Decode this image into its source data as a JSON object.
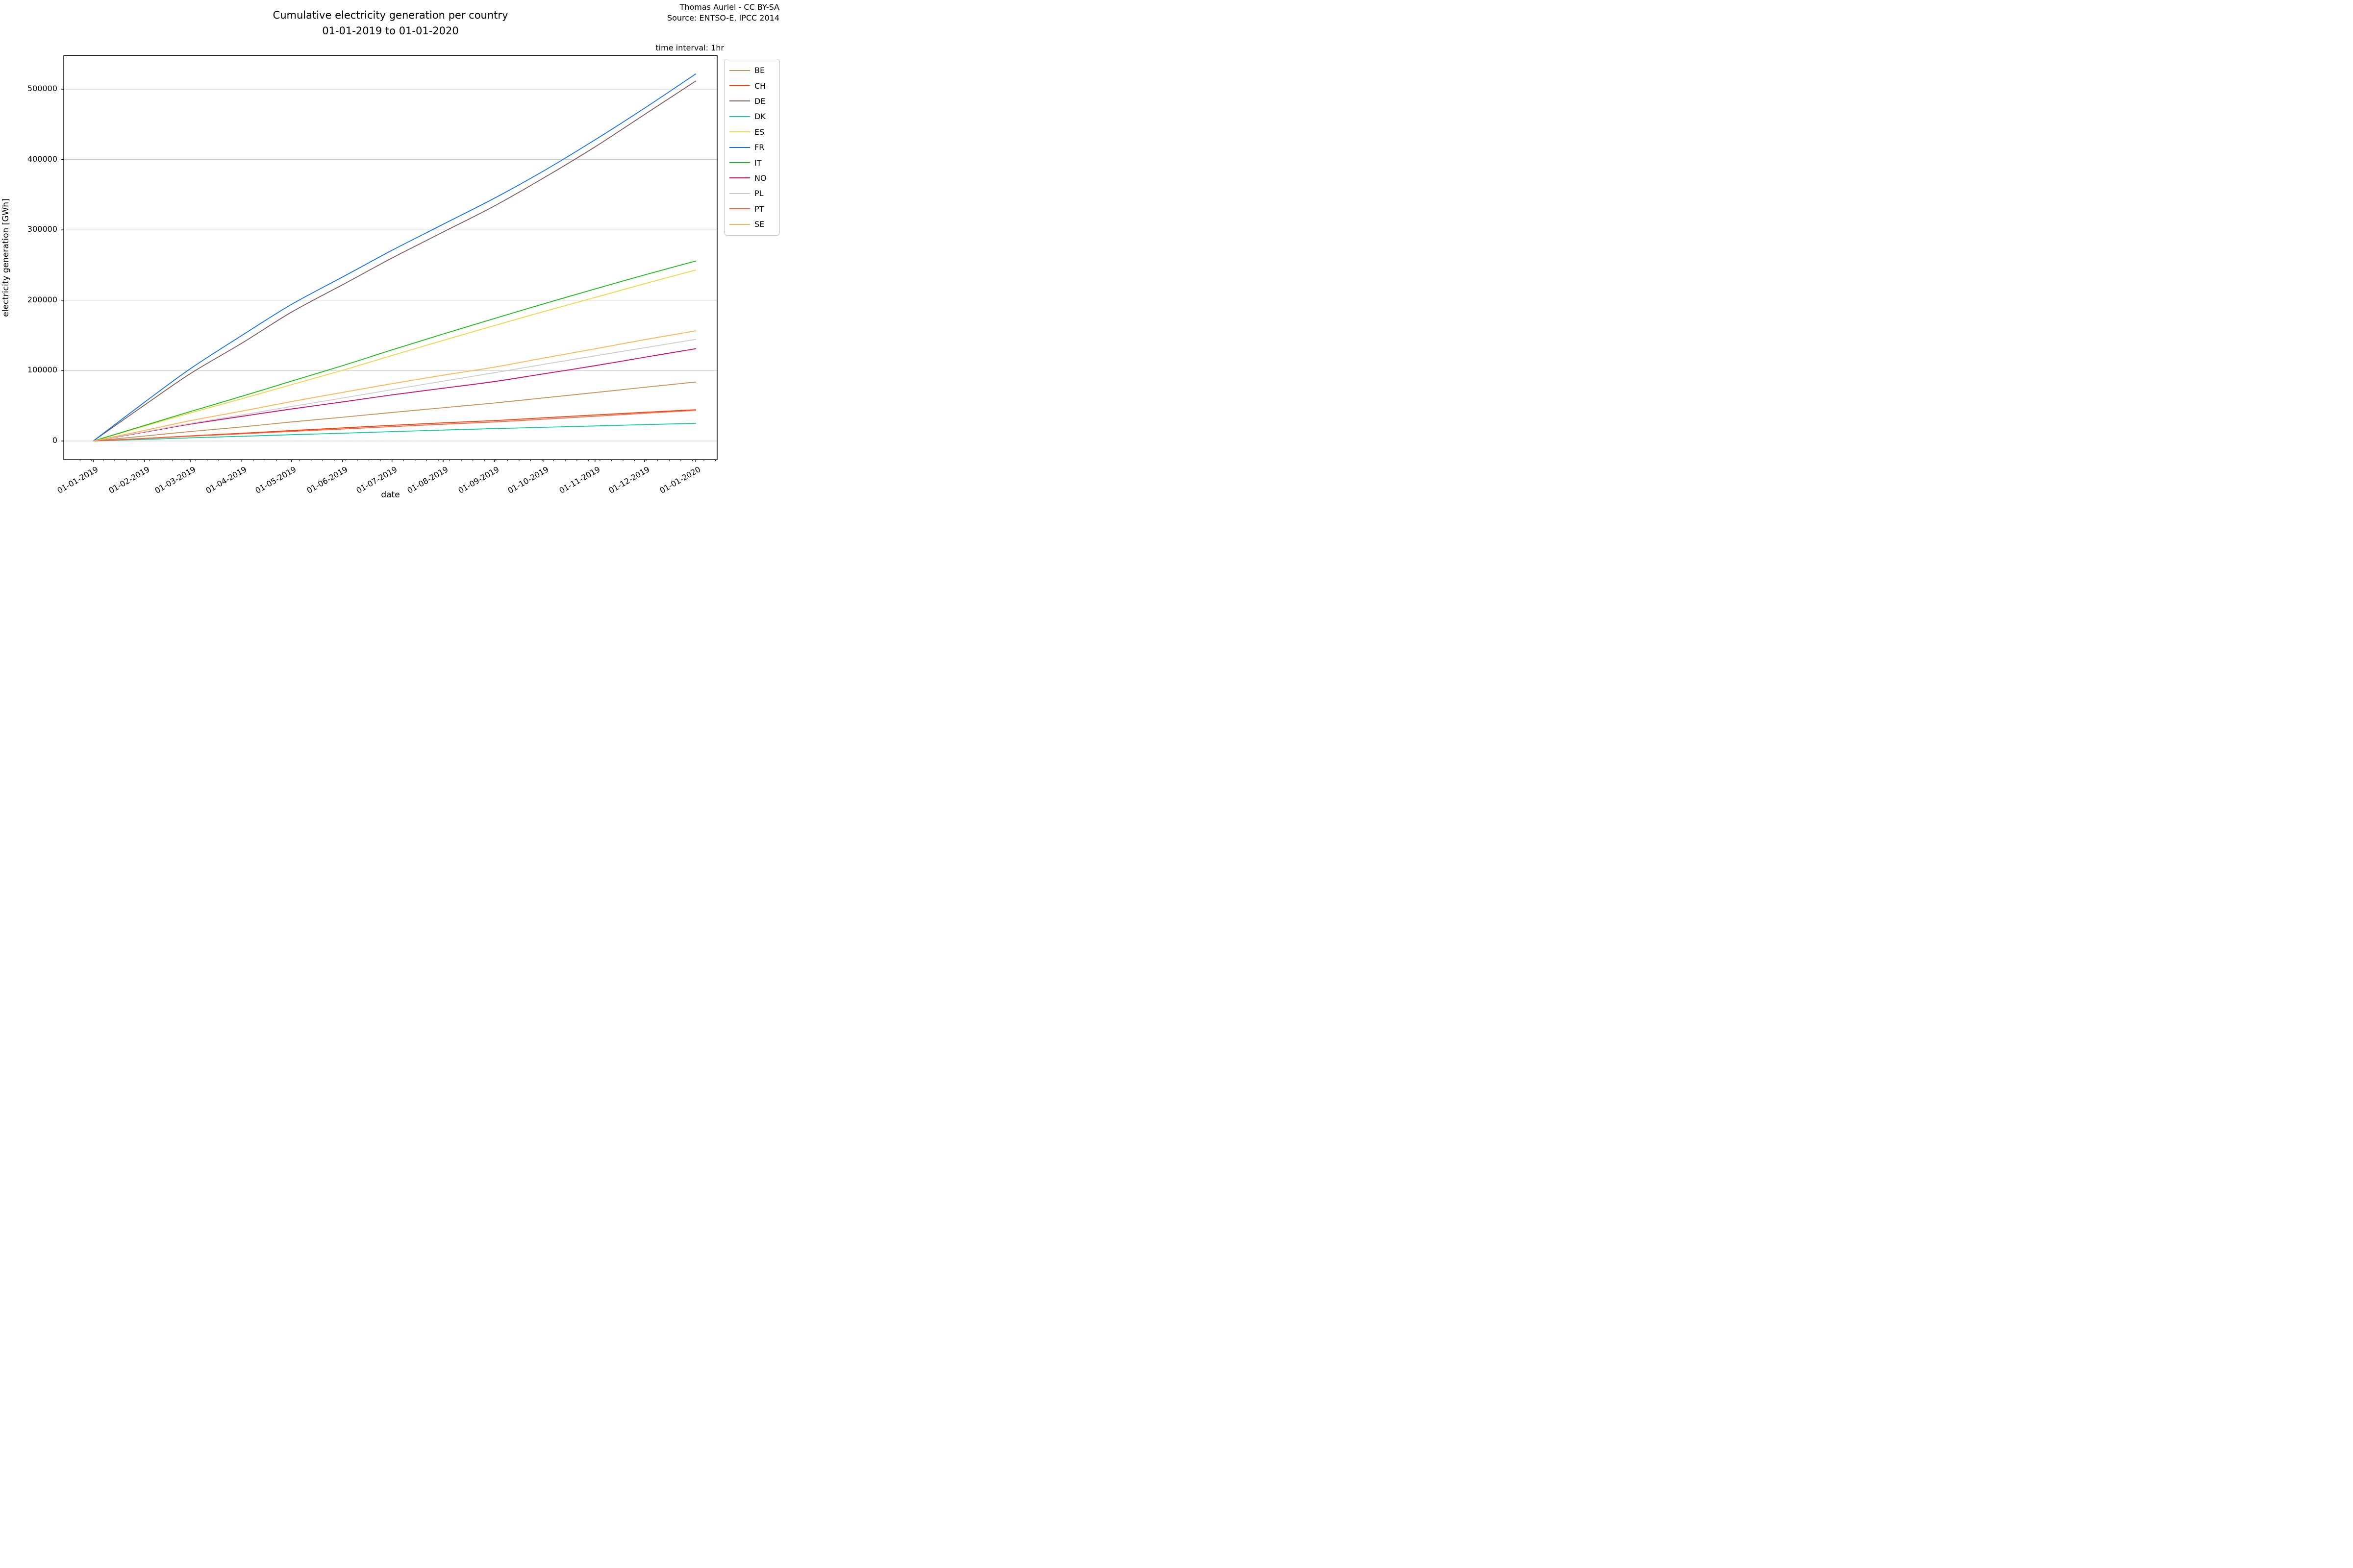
{
  "header": {
    "title_line1": "Cumulative electricity generation per country",
    "title_line2": "01-01-2019 to 01-01-2020",
    "credit_line1": "Thomas Auriel - CC BY-SA",
    "credit_line2": "Source: ENTSO-E, IPCC 2014",
    "time_interval_note": "time interval: 1hr"
  },
  "axes": {
    "x_label": "date",
    "y_label": "electricity generation [GWh]",
    "y_tick_labels": [
      "0",
      "100000",
      "200000",
      "300000",
      "400000",
      "500000"
    ],
    "x_tick_labels": [
      "01-01-2019",
      "01-02-2019",
      "01-03-2019",
      "01-04-2019",
      "01-05-2019",
      "01-06-2019",
      "01-07-2019",
      "01-08-2019",
      "01-09-2019",
      "01-10-2019",
      "01-11-2019",
      "01-12-2019",
      "01-01-2020"
    ]
  },
  "legend": {
    "items": [
      {
        "label": "BE",
        "color": "#c89058"
      },
      {
        "label": "CH",
        "color": "#f44000"
      },
      {
        "label": "DE",
        "color": "#7e5c54"
      },
      {
        "label": "DK",
        "color": "#12c8a0"
      },
      {
        "label": "ES",
        "color": "#f2d344"
      },
      {
        "label": "FR",
        "color": "#1170ee"
      },
      {
        "label": "IT",
        "color": "#16bd16"
      },
      {
        "label": "NO",
        "color": "#d00970"
      },
      {
        "label": "PL",
        "color": "#cccccc"
      },
      {
        "label": "PT",
        "color": "#ff6347"
      },
      {
        "label": "SE",
        "color": "#fcb44c"
      }
    ]
  },
  "chart_data": {
    "type": "line",
    "title": "Cumulative electricity generation per country 01-01-2019 to 01-01-2020",
    "xlabel": "date",
    "ylabel": "electricity generation [GWh]",
    "x_categories": [
      "01-01-2019",
      "01-02-2019",
      "01-03-2019",
      "01-04-2019",
      "01-05-2019",
      "01-06-2019",
      "01-07-2019",
      "01-08-2019",
      "01-09-2019",
      "01-10-2019",
      "01-11-2019",
      "01-12-2019",
      "01-01-2020"
    ],
    "x_day_offsets": [
      0,
      31,
      59,
      90,
      120,
      151,
      181,
      212,
      243,
      273,
      304,
      334,
      365
    ],
    "ylim": [
      -26000,
      547000
    ],
    "y_gridline_values": [
      0,
      100000,
      200000,
      300000,
      400000,
      500000
    ],
    "grid": "horizontal major gridlines only",
    "legend_position": "outside upper right",
    "minor_x_ticks": "weekly",
    "colors": {
      "gridline": "#c9c9c9",
      "spine": "#000000",
      "background": "#ffffff"
    },
    "series": [
      {
        "name": "BE",
        "color": "#c89058",
        "values": [
          0,
          7000,
          13500,
          20000,
          27000,
          33800,
          40500,
          47300,
          54000,
          61300,
          68800,
          76300,
          83800
        ]
      },
      {
        "name": "CH",
        "color": "#f44000",
        "values": [
          0,
          3700,
          7300,
          11000,
          14800,
          18600,
          22300,
          25800,
          29000,
          33000,
          37000,
          40800,
          44500
        ]
      },
      {
        "name": "DE",
        "color": "#7e5c54",
        "values": [
          0,
          51000,
          96000,
          139000,
          183000,
          222000,
          260000,
          297000,
          334000,
          374000,
          418000,
          464000,
          511500
        ]
      },
      {
        "name": "DK",
        "color": "#12c8a0",
        "values": [
          0,
          2300,
          4500,
          6700,
          8900,
          11100,
          13300,
          15500,
          17600,
          19500,
          21400,
          23300,
          25100
        ]
      },
      {
        "name": "ES",
        "color": "#f2d344",
        "values": [
          0,
          21000,
          40000,
          60000,
          80000,
          100500,
          121500,
          143000,
          164000,
          184000,
          204000,
          223500,
          243000
        ]
      },
      {
        "name": "FR",
        "color": "#1170ee",
        "values": [
          0,
          55000,
          103000,
          150000,
          194000,
          233000,
          271000,
          308000,
          345000,
          384000,
          428000,
          473000,
          521600
        ]
      },
      {
        "name": "IT",
        "color": "#16bd16",
        "values": [
          0,
          22000,
          42000,
          63500,
          85000,
          107000,
          129500,
          152000,
          174000,
          195000,
          216000,
          236000,
          255800
        ]
      },
      {
        "name": "NO",
        "color": "#d00970",
        "values": [
          0,
          12500,
          24000,
          35000,
          45500,
          55500,
          65500,
          75000,
          84500,
          95500,
          107000,
          119000,
          131100
        ]
      },
      {
        "name": "PL",
        "color": "#cccccc",
        "values": [
          0,
          13000,
          25000,
          37000,
          49000,
          61000,
          73000,
          85000,
          97000,
          109000,
          121000,
          132500,
          144400
        ]
      },
      {
        "name": "PT",
        "color": "#ff6347",
        "values": [
          0,
          3500,
          6800,
          10200,
          13600,
          17000,
          20400,
          23800,
          27000,
          31000,
          35200,
          39400,
          43600
        ]
      },
      {
        "name": "SE",
        "color": "#fcb44c",
        "values": [
          0,
          15000,
          29000,
          42500,
          56000,
          69000,
          81500,
          93500,
          105000,
          118000,
          131000,
          144000,
          156500
        ]
      }
    ]
  }
}
